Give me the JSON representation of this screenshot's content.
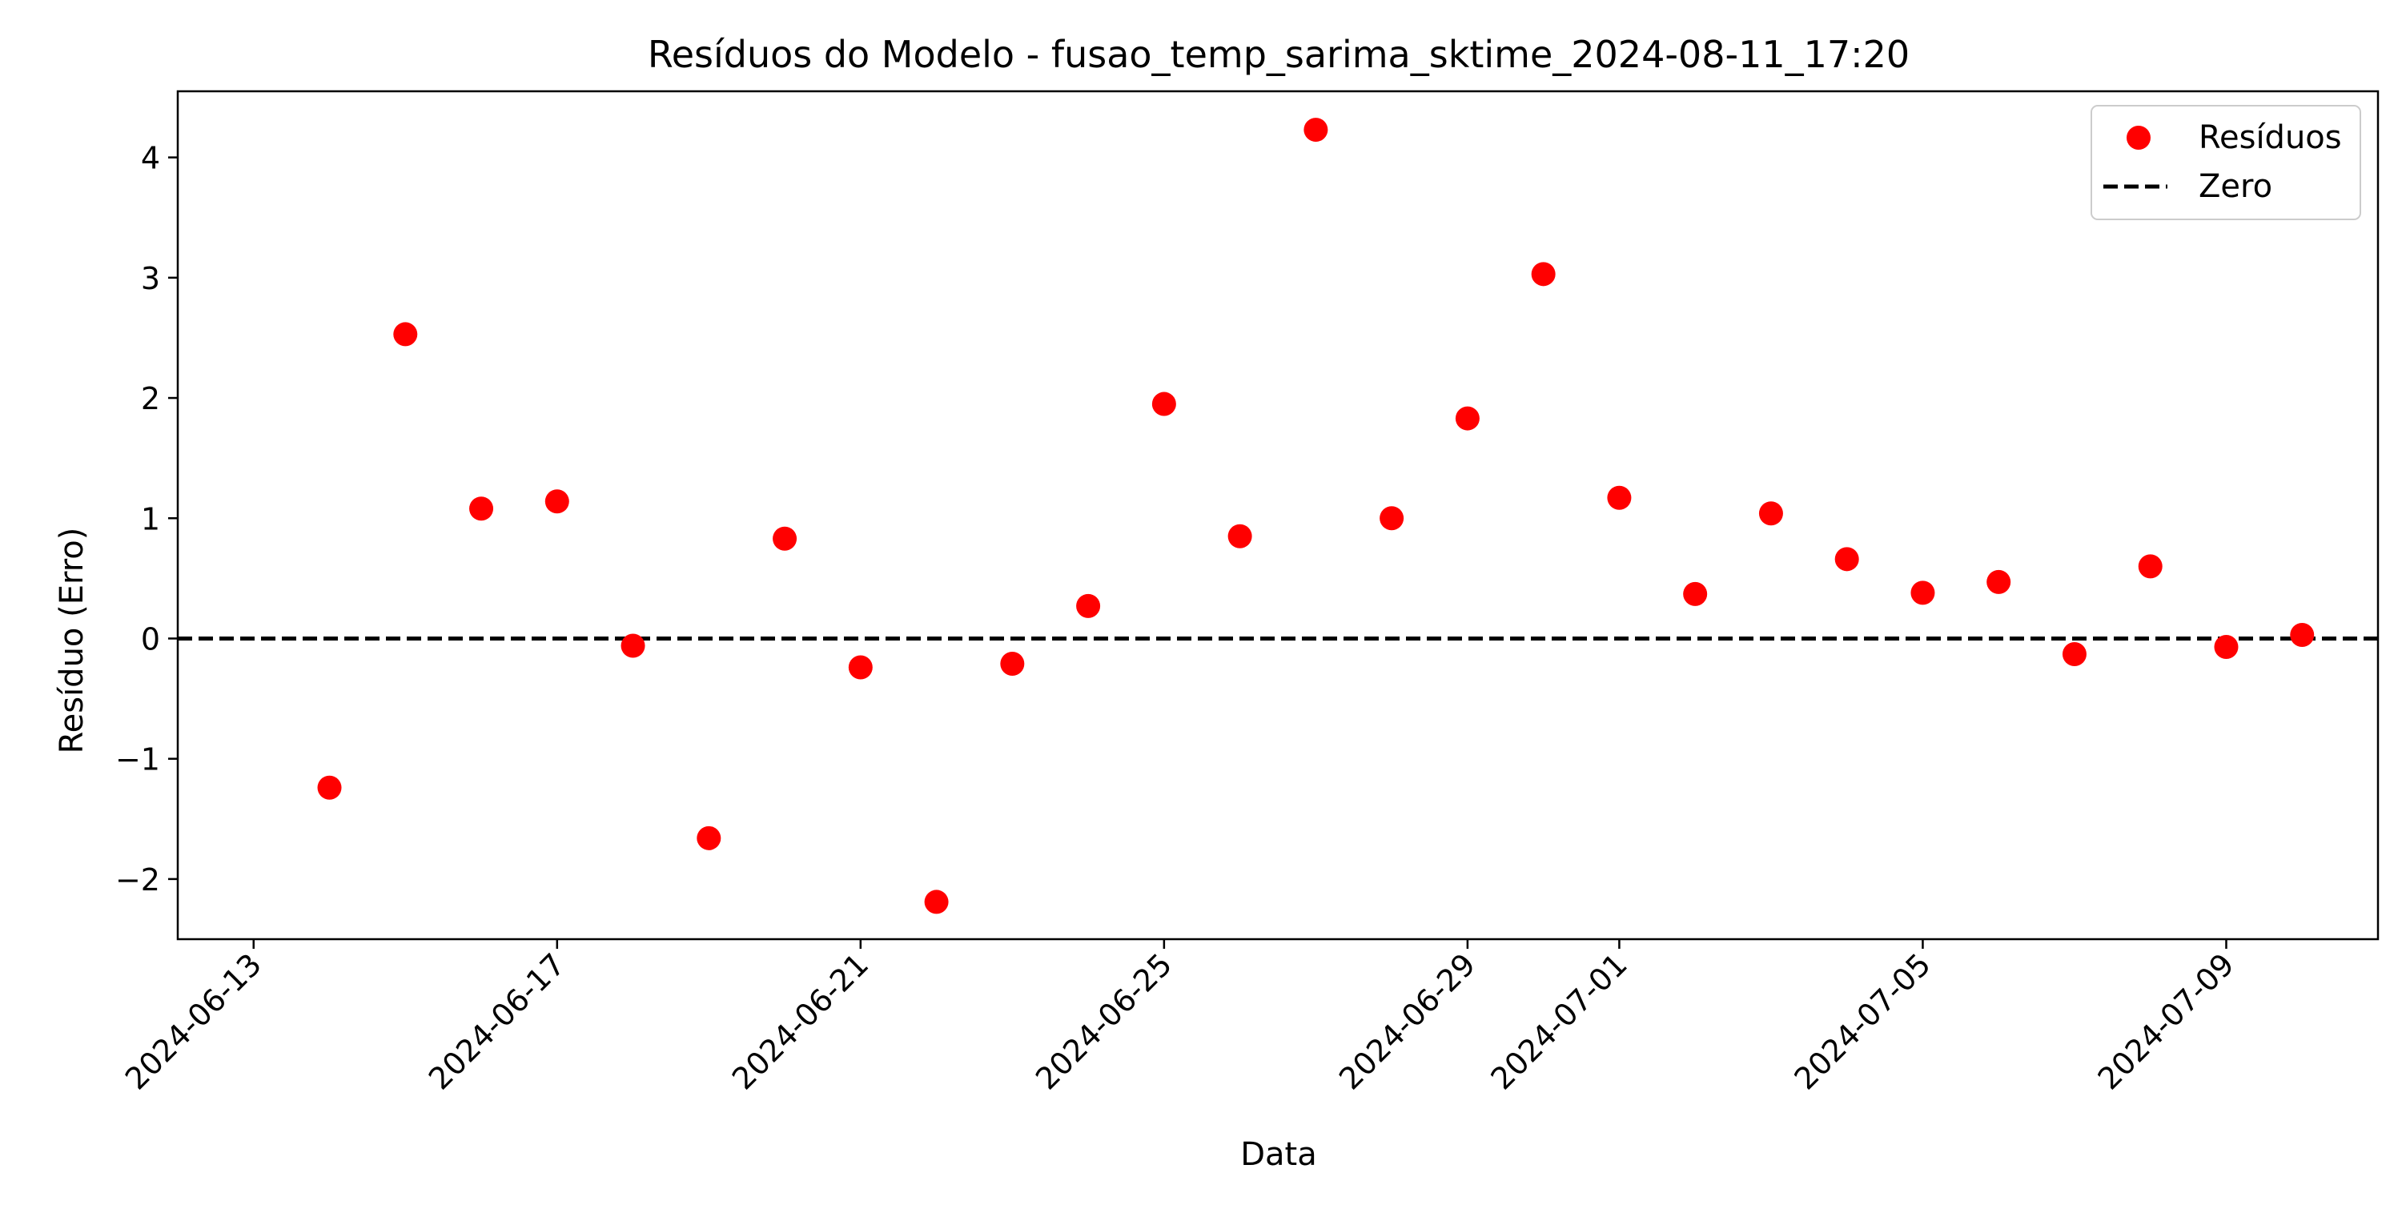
{
  "chart_data": {
    "type": "scatter",
    "title": "Resíduos do Modelo - fusao_temp_sarima_sktime_2024-08-11_17:20",
    "xlabel": "Data",
    "ylabel": "Resíduo (Erro)",
    "xlim": [
      "2024-06-12",
      "2024-07-11"
    ],
    "ylim": [
      -2.5,
      4.55
    ],
    "x_ticks": [
      "2024-06-13",
      "2024-06-17",
      "2024-06-21",
      "2024-06-25",
      "2024-06-29",
      "2024-07-01",
      "2024-07-05",
      "2024-07-09"
    ],
    "y_ticks": [
      -2,
      -1,
      0,
      1,
      2,
      3,
      4
    ],
    "y_tick_labels": [
      "−2",
      "−1",
      "0",
      "1",
      "2",
      "3",
      "4"
    ],
    "grid": false,
    "legend": {
      "position": "top-right",
      "entries": [
        {
          "label": "Resíduos",
          "kind": "marker",
          "color": "#ff0000"
        },
        {
          "label": "Zero",
          "kind": "dashed-line",
          "color": "#000000"
        }
      ]
    },
    "series": [
      {
        "name": "Resíduos",
        "color": "#ff0000",
        "points": [
          {
            "x": "2024-06-14",
            "y": -1.24
          },
          {
            "x": "2024-06-15",
            "y": 2.53
          },
          {
            "x": "2024-06-16",
            "y": 1.08
          },
          {
            "x": "2024-06-17",
            "y": 1.14
          },
          {
            "x": "2024-06-18",
            "y": -0.06
          },
          {
            "x": "2024-06-19",
            "y": -1.66
          },
          {
            "x": "2024-06-20",
            "y": 0.83
          },
          {
            "x": "2024-06-21",
            "y": -0.24
          },
          {
            "x": "2024-06-22",
            "y": -2.19
          },
          {
            "x": "2024-06-23",
            "y": -0.21
          },
          {
            "x": "2024-06-24",
            "y": 0.27
          },
          {
            "x": "2024-06-25",
            "y": 1.95
          },
          {
            "x": "2024-06-26",
            "y": 0.85
          },
          {
            "x": "2024-06-27",
            "y": 4.23
          },
          {
            "x": "2024-06-28",
            "y": 1.0
          },
          {
            "x": "2024-06-29",
            "y": 1.83
          },
          {
            "x": "2024-06-30",
            "y": 3.03
          },
          {
            "x": "2024-07-01",
            "y": 1.17
          },
          {
            "x": "2024-07-02",
            "y": 0.37
          },
          {
            "x": "2024-07-03",
            "y": 1.04
          },
          {
            "x": "2024-07-04",
            "y": 0.66
          },
          {
            "x": "2024-07-05",
            "y": 0.38
          },
          {
            "x": "2024-07-06",
            "y": 0.47
          },
          {
            "x": "2024-07-07",
            "y": -0.13
          },
          {
            "x": "2024-07-08",
            "y": 0.6
          },
          {
            "x": "2024-07-09",
            "y": -0.07
          },
          {
            "x": "2024-07-10",
            "y": 0.03
          }
        ]
      },
      {
        "name": "Zero",
        "color": "#000000",
        "line_y": 0
      }
    ]
  }
}
